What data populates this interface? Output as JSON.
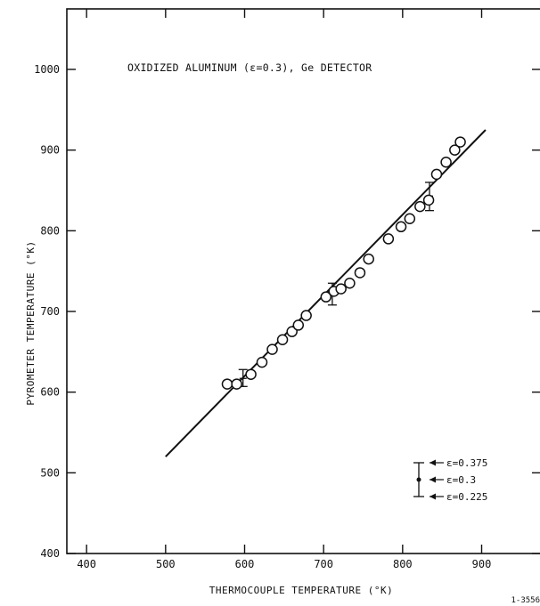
{
  "chart_data": {
    "type": "scatter",
    "title": "OXIDIZED ALUMINUM (ε=0.3), Ge DETECTOR",
    "xlabel": "THERMOCOUPLE TEMPERATURE (°K)",
    "ylabel": "PYROMETER TEMPERATURE (°K)",
    "figure_id": "1-3556",
    "xlim": [
      375,
      975
    ],
    "ylim": [
      400,
      1075
    ],
    "x_ticks": [
      400,
      500,
      600,
      700,
      800,
      900
    ],
    "y_ticks": [
      400,
      500,
      600,
      700,
      800,
      900,
      1000
    ],
    "x_tick_labels": [
      "400",
      "500",
      "600",
      "700",
      "800",
      "900"
    ],
    "y_tick_labels": [
      "400",
      "500",
      "600",
      "700",
      "800",
      "900",
      "1000"
    ],
    "grid": false,
    "legend_position": "bottom-right",
    "legend": {
      "entries": [
        "ε=0.375",
        "ε=0.3",
        "ε=0.225"
      ]
    },
    "line": {
      "x": [
        500,
        905
      ],
      "y": [
        520,
        925
      ]
    },
    "points": {
      "x": [
        578,
        590,
        608,
        622,
        635,
        648,
        660,
        668,
        678,
        703,
        713,
        722,
        733,
        746,
        757,
        782,
        798,
        809,
        822,
        833,
        843,
        855,
        866,
        873
      ],
      "y": [
        610,
        610,
        622,
        637,
        653,
        665,
        675,
        683,
        695,
        718,
        725,
        728,
        735,
        748,
        765,
        790,
        805,
        815,
        830,
        838,
        870,
        885,
        900,
        910
      ]
    },
    "error_bars": [
      {
        "x": 598,
        "y": 617,
        "upper": 628,
        "lower": 607
      },
      {
        "x": 711,
        "y": 722,
        "upper": 735,
        "lower": 708
      },
      {
        "x": 834,
        "y": 843,
        "upper": 860,
        "lower": 825
      }
    ]
  }
}
